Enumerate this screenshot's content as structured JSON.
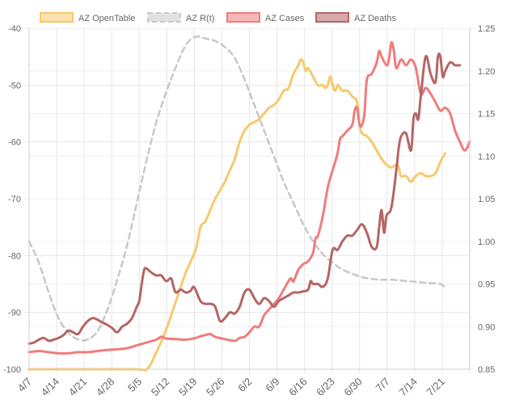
{
  "chart_data": {
    "type": "line",
    "title": "",
    "xlabel": "",
    "ylabel": "",
    "x_ticks": [
      "4/7",
      "4/14",
      "4/21",
      "4/28",
      "5/5",
      "5/12",
      "5/19",
      "5/26",
      "6/2",
      "6/9",
      "6/16",
      "6/23",
      "6/30",
      "7/7",
      "7/14",
      "7/21"
    ],
    "y_left": {
      "min": -100,
      "max": -40,
      "ticks": [
        "-40",
        "-50",
        "-60",
        "-70",
        "-80",
        "-90",
        "-100"
      ]
    },
    "y_right": {
      "min": 0.85,
      "max": 1.25,
      "ticks": [
        "1.25",
        "1.20",
        "1.15",
        "1.10",
        "1.05",
        "1.00",
        "0.95",
        "0.90",
        "0.85"
      ]
    },
    "grid": true,
    "legend_position": "top",
    "series": [
      {
        "name": "AZ OpenTable",
        "axis": "left",
        "color": "#f7c96b",
        "dash": "none",
        "values": [
          [
            0,
            -100
          ],
          [
            21,
            -100
          ],
          [
            24,
            -100
          ],
          [
            26,
            -97
          ],
          [
            28,
            -93
          ],
          [
            30,
            -88
          ],
          [
            32,
            -83
          ],
          [
            34,
            -79
          ],
          [
            35,
            -75
          ],
          [
            36,
            -74
          ],
          [
            37,
            -72
          ],
          [
            38,
            -70
          ],
          [
            39,
            -68.5
          ],
          [
            40,
            -67
          ],
          [
            41,
            -65
          ],
          [
            42,
            -63
          ],
          [
            43,
            -60
          ],
          [
            44,
            -58
          ],
          [
            45,
            -57
          ],
          [
            46,
            -56.5
          ],
          [
            47,
            -56
          ],
          [
            48,
            -55
          ],
          [
            49,
            -54
          ],
          [
            50,
            -53.5
          ],
          [
            51,
            -52.5
          ],
          [
            52,
            -51
          ],
          [
            53,
            -50.5
          ],
          [
            54,
            -48
          ],
          [
            55,
            -46.5
          ],
          [
            55.5,
            -45.5
          ],
          [
            56,
            -46
          ],
          [
            56.5,
            -47.5
          ],
          [
            57,
            -47
          ],
          [
            58,
            -48.5
          ],
          [
            59,
            -50
          ],
          [
            60,
            -50
          ],
          [
            60.5,
            -50.5
          ],
          [
            61,
            -50
          ],
          [
            61.5,
            -48.5
          ],
          [
            62,
            -50
          ],
          [
            62.5,
            -51
          ],
          [
            63,
            -50
          ],
          [
            63.5,
            -50.5
          ],
          [
            64,
            -51
          ],
          [
            65,
            -51
          ],
          [
            66,
            -52
          ],
          [
            67,
            -53
          ],
          [
            67.5,
            -57
          ],
          [
            68,
            -58.5
          ],
          [
            69,
            -59
          ],
          [
            70,
            -60
          ],
          [
            71,
            -61.5
          ],
          [
            72,
            -63
          ],
          [
            73,
            -64
          ],
          [
            74,
            -64.5
          ],
          [
            75,
            -64
          ],
          [
            75.5,
            -64.5
          ],
          [
            76,
            -66
          ],
          [
            77,
            -66
          ],
          [
            78,
            -67
          ],
          [
            79,
            -66
          ],
          [
            80,
            -65.5
          ],
          [
            81,
            -66
          ],
          [
            82,
            -66
          ],
          [
            83,
            -65.5
          ],
          [
            84,
            -63.5
          ],
          [
            85,
            -62
          ]
        ]
      },
      {
        "name": "AZ R(t)",
        "axis": "right",
        "color": "#c8c8c8",
        "dash": "7,5",
        "values": [
          [
            0,
            1.0
          ],
          [
            2,
            0.975
          ],
          [
            4,
            0.94
          ],
          [
            6,
            0.91
          ],
          [
            8,
            0.893
          ],
          [
            10,
            0.885
          ],
          [
            12,
            0.885
          ],
          [
            14,
            0.895
          ],
          [
            16,
            0.92
          ],
          [
            18,
            0.955
          ],
          [
            20,
            0.995
          ],
          [
            22,
            1.045
          ],
          [
            24,
            1.095
          ],
          [
            26,
            1.14
          ],
          [
            28,
            1.175
          ],
          [
            30,
            1.205
          ],
          [
            32,
            1.23
          ],
          [
            34,
            1.24
          ],
          [
            36,
            1.238
          ],
          [
            38,
            1.235
          ],
          [
            40,
            1.228
          ],
          [
            42,
            1.215
          ],
          [
            44,
            1.19
          ],
          [
            46,
            1.16
          ],
          [
            48,
            1.13
          ],
          [
            50,
            1.1
          ],
          [
            52,
            1.07
          ],
          [
            54,
            1.045
          ],
          [
            56,
            1.02
          ],
          [
            58,
            1.0
          ],
          [
            60,
            0.985
          ],
          [
            62,
            0.975
          ],
          [
            64,
            0.967
          ],
          [
            66,
            0.962
          ],
          [
            68,
            0.958
          ],
          [
            70,
            0.956
          ],
          [
            72,
            0.955
          ],
          [
            74,
            0.955
          ],
          [
            76,
            0.954
          ],
          [
            78,
            0.953
          ],
          [
            80,
            0.952
          ],
          [
            82,
            0.951
          ],
          [
            84,
            0.95
          ],
          [
            85,
            0.946
          ]
        ]
      },
      {
        "name": "AZ Cases",
        "axis": "left",
        "color": "#f07c7c",
        "dash": "none",
        "values": [
          [
            0,
            -97
          ],
          [
            2,
            -96.8
          ],
          [
            4,
            -97
          ],
          [
            6,
            -97.2
          ],
          [
            8,
            -97.2
          ],
          [
            10,
            -97
          ],
          [
            12,
            -97
          ],
          [
            14,
            -96.8
          ],
          [
            16,
            -96.6
          ],
          [
            18,
            -96.5
          ],
          [
            20,
            -96.3
          ],
          [
            22,
            -95.8
          ],
          [
            24,
            -95.3
          ],
          [
            26,
            -94.8
          ],
          [
            27,
            -94.3
          ],
          [
            28,
            -94.6
          ],
          [
            30,
            -94.7
          ],
          [
            32,
            -94.8
          ],
          [
            34,
            -94.5
          ],
          [
            35,
            -94.2
          ],
          [
            36,
            -94
          ],
          [
            37,
            -93.8
          ],
          [
            38,
            -94.3
          ],
          [
            40,
            -94.7
          ],
          [
            42,
            -95
          ],
          [
            43,
            -94.5
          ],
          [
            44,
            -94.3
          ],
          [
            45,
            -93.5
          ],
          [
            46,
            -92.5
          ],
          [
            47,
            -92.5
          ],
          [
            48,
            -90.5
          ],
          [
            49,
            -89.5
          ],
          [
            50,
            -88.5
          ],
          [
            51,
            -87.5
          ],
          [
            52,
            -86
          ],
          [
            53,
            -84.5
          ],
          [
            53.5,
            -84
          ],
          [
            54,
            -84.5
          ],
          [
            55,
            -82.5
          ],
          [
            56,
            -81.5
          ],
          [
            57,
            -81
          ],
          [
            58,
            -79.5
          ],
          [
            58.5,
            -77
          ],
          [
            59,
            -76.5
          ],
          [
            60,
            -73
          ],
          [
            61,
            -68
          ],
          [
            62,
            -65
          ],
          [
            63,
            -62
          ],
          [
            63.5,
            -59.5
          ],
          [
            64,
            -59
          ],
          [
            65,
            -58
          ],
          [
            66,
            -57
          ],
          [
            66.5,
            -54.5
          ],
          [
            67,
            -54
          ],
          [
            67.5,
            -57
          ],
          [
            68,
            -57
          ],
          [
            68.5,
            -55
          ],
          [
            69,
            -49
          ],
          [
            70,
            -48
          ],
          [
            71,
            -46
          ],
          [
            71.5,
            -44
          ],
          [
            72,
            -45
          ],
          [
            73,
            -46.5
          ],
          [
            73.5,
            -45.5
          ],
          [
            74,
            -42.5
          ],
          [
            74.5,
            -44
          ],
          [
            75,
            -47
          ],
          [
            76,
            -45.5
          ],
          [
            77,
            -46.5
          ],
          [
            78,
            -45.5
          ],
          [
            79,
            -47
          ],
          [
            80,
            -51.5
          ],
          [
            81,
            -50.5
          ],
          [
            82,
            -51.5
          ],
          [
            83,
            -53
          ],
          [
            84,
            -54.5
          ],
          [
            85,
            -54
          ],
          [
            86,
            -55
          ],
          [
            87,
            -58
          ],
          [
            88,
            -60
          ],
          [
            89,
            -61.5
          ],
          [
            90,
            -60
          ]
        ]
      },
      {
        "name": "AZ Deaths",
        "axis": "left",
        "color": "#b56565",
        "dash": "none",
        "values": [
          [
            0,
            -95.5
          ],
          [
            1,
            -95.3
          ],
          [
            2,
            -94.8
          ],
          [
            3,
            -94.5
          ],
          [
            4,
            -95
          ],
          [
            5,
            -94.8
          ],
          [
            6,
            -94.5
          ],
          [
            7,
            -94
          ],
          [
            8,
            -93.2
          ],
          [
            9,
            -93.5
          ],
          [
            10,
            -93.8
          ],
          [
            11,
            -92.5
          ],
          [
            12,
            -91.5
          ],
          [
            13,
            -91
          ],
          [
            14,
            -91.3
          ],
          [
            15,
            -91.8
          ],
          [
            16,
            -92.2
          ],
          [
            17,
            -92.8
          ],
          [
            18,
            -93.5
          ],
          [
            19,
            -92.5
          ],
          [
            20,
            -92
          ],
          [
            21,
            -91
          ],
          [
            22,
            -89
          ],
          [
            22.5,
            -88
          ],
          [
            23,
            -85
          ],
          [
            23.5,
            -82.5
          ],
          [
            24,
            -82.3
          ],
          [
            25,
            -83
          ],
          [
            26,
            -83.5
          ],
          [
            27,
            -83.5
          ],
          [
            28,
            -84.5
          ],
          [
            29,
            -84
          ],
          [
            29.5,
            -85.5
          ],
          [
            30,
            -86.5
          ],
          [
            31,
            -86
          ],
          [
            32,
            -86.5
          ],
          [
            33,
            -86.2
          ],
          [
            33.5,
            -85.5
          ],
          [
            34,
            -86
          ],
          [
            35,
            -88
          ],
          [
            36,
            -88.5
          ],
          [
            37,
            -88.5
          ],
          [
            38,
            -89
          ],
          [
            39,
            -91.5
          ],
          [
            40,
            -91
          ],
          [
            41,
            -90
          ],
          [
            42,
            -90.2
          ],
          [
            43,
            -89
          ],
          [
            44,
            -86.5
          ],
          [
            45,
            -86
          ],
          [
            46,
            -87.5
          ],
          [
            47,
            -88.5
          ],
          [
            48,
            -87.5
          ],
          [
            49,
            -88
          ],
          [
            50,
            -89
          ],
          [
            51,
            -88
          ],
          [
            52,
            -87.5
          ],
          [
            53,
            -87
          ],
          [
            54,
            -86.5
          ],
          [
            55,
            -86.5
          ],
          [
            56,
            -86.3
          ],
          [
            57,
            -86
          ],
          [
            57.5,
            -84.5
          ],
          [
            58,
            -85
          ],
          [
            59,
            -85
          ],
          [
            60,
            -85.5
          ],
          [
            61,
            -84
          ],
          [
            62,
            -79
          ],
          [
            63,
            -79
          ],
          [
            64,
            -77.5
          ],
          [
            65,
            -76.5
          ],
          [
            66,
            -76.5
          ],
          [
            67,
            -75.5
          ],
          [
            68,
            -74.5
          ],
          [
            69,
            -76
          ],
          [
            70,
            -78.5
          ],
          [
            71,
            -78.5
          ],
          [
            71.5,
            -75
          ],
          [
            72,
            -72
          ],
          [
            72.5,
            -76
          ],
          [
            73,
            -73
          ],
          [
            74,
            -71.5
          ],
          [
            75,
            -65
          ],
          [
            75.5,
            -61
          ],
          [
            76,
            -59
          ],
          [
            77,
            -58.5
          ],
          [
            78,
            -61.5
          ],
          [
            78.5,
            -56
          ],
          [
            79,
            -55
          ],
          [
            79.5,
            -56
          ],
          [
            80,
            -52
          ],
          [
            81,
            -45
          ],
          [
            82,
            -48
          ],
          [
            83,
            -49.5
          ],
          [
            83.5,
            -45
          ],
          [
            84,
            -45
          ],
          [
            84.5,
            -48.5
          ],
          [
            85,
            -47.5
          ],
          [
            86,
            -46
          ],
          [
            87,
            -46.5
          ],
          [
            88,
            -46.5
          ]
        ]
      }
    ]
  }
}
